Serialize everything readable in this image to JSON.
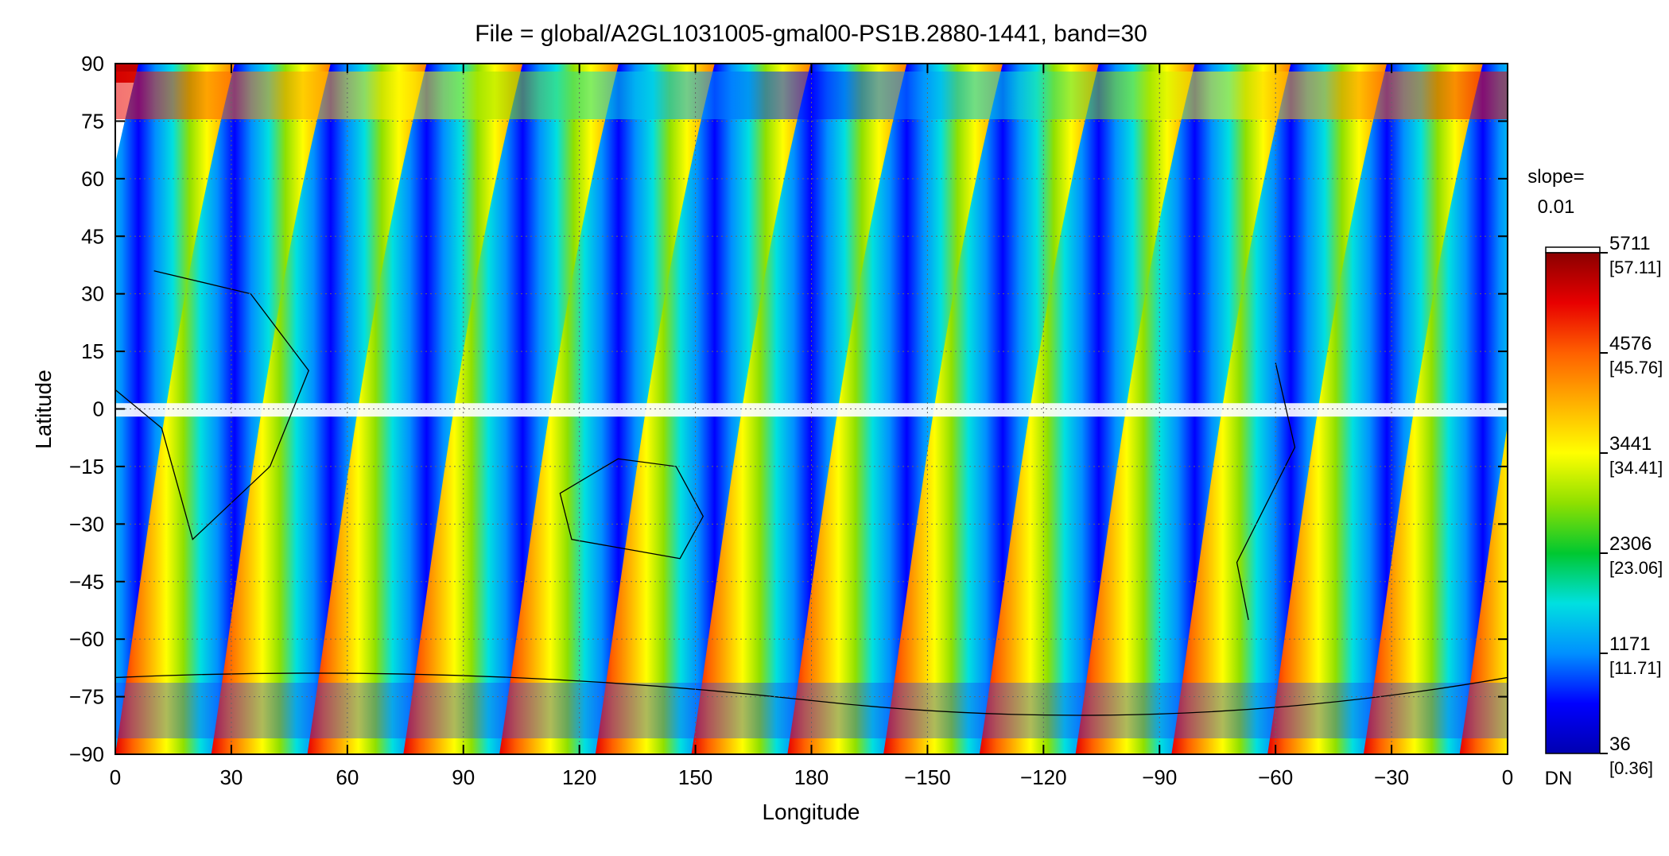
{
  "figure": {
    "title": "File = global/A2GL1031005-gmal00-PS1B.2880-1441, band=30",
    "xlabel": "Longitude",
    "ylabel": "Latitude"
  },
  "axes": {
    "x_ticks": [
      "0",
      "30",
      "60",
      "90",
      "120",
      "150",
      "180",
      "−150",
      "−120",
      "−90",
      "−60",
      "−30",
      "0"
    ],
    "y_ticks": [
      "90",
      "75",
      "60",
      "45",
      "30",
      "15",
      "0",
      "−15",
      "−30",
      "−45",
      "−60",
      "−75",
      "−90"
    ]
  },
  "colorbar": {
    "slope_label": "slope=",
    "slope_value": "0.01",
    "unit": "DN",
    "ticks": [
      {
        "dn": "5711",
        "scaled": "[57.11]"
      },
      {
        "dn": "4576",
        "scaled": "[45.76]"
      },
      {
        "dn": "3441",
        "scaled": "[34.41]"
      },
      {
        "dn": "2306",
        "scaled": "[23.06]"
      },
      {
        "dn": "1171",
        "scaled": "[11.71]"
      },
      {
        "dn": "36",
        "scaled": "[0.36]"
      }
    ],
    "colors": [
      "#0000b0",
      "#0000ff",
      "#0090ff",
      "#00e0e0",
      "#00c830",
      "#8fe000",
      "#ffff00",
      "#ffb000",
      "#ff6000",
      "#e80000",
      "#8b0000"
    ]
  },
  "chart_data": {
    "type": "heatmap",
    "title": "File = global/A2GL1031005-gmal00-PS1B.2880-1441, band=30",
    "xlabel": "Longitude",
    "ylabel": "Latitude",
    "xlim": [
      0,
      360
    ],
    "ylim": [
      -90,
      90
    ],
    "x_tick_values": [
      0,
      30,
      60,
      90,
      120,
      150,
      180,
      -150,
      -120,
      -90,
      -60,
      -30,
      0
    ],
    "y_tick_values": [
      90,
      75,
      60,
      45,
      30,
      15,
      0,
      -15,
      -30,
      -45,
      -60,
      -75,
      -90
    ],
    "colorbar_range": [
      36,
      5711
    ],
    "colorbar_ticks": [
      36,
      1171,
      2306,
      3441,
      4576,
      5711
    ],
    "colorbar_scaled_ticks": [
      0.36,
      11.71,
      23.06,
      34.41,
      45.76,
      57.11
    ],
    "slope": 0.01,
    "unit": "DN",
    "grid": true
  }
}
